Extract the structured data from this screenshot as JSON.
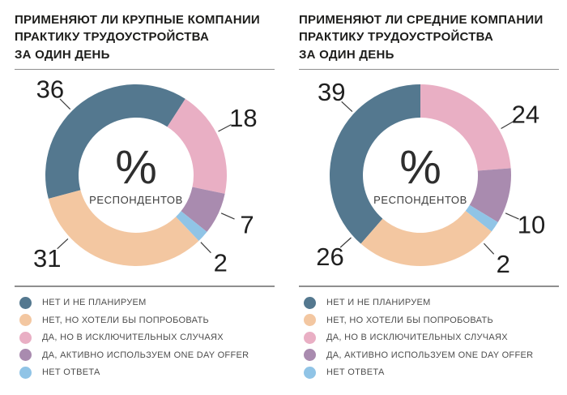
{
  "colors": {
    "slate": "#54788F",
    "peach": "#F3C7A1",
    "pink": "#E9AFC4",
    "purple": "#A98BAF",
    "blue": "#90C4E6",
    "leader": "#3a3a3a"
  },
  "chart_data": [
    {
      "type": "pie",
      "variant": "donut",
      "title": "ПРИМЕНЯЮТ ЛИ КРУПНЫЕ КОМПАНИИ ПРАКТИКУ ТРУДОУСТРОЙСТВА ЗА ОДИН ДЕНЬ",
      "title_lines": [
        "ПРИМЕНЯЮТ ЛИ КРУПНЫЕ КОМПАНИИ",
        "ПРАКТИКУ ТРУДОУСТРОЙСТВА",
        "ЗА ОДИН ДЕНЬ"
      ],
      "center_label": "%",
      "center_sublabel": "РЕСПОНДЕНТОВ",
      "unit": "% респондентов",
      "categories": [
        "НЕТ И НЕ ПЛАНИРУЕМ",
        "НЕТ, НО ХОТЕЛИ БЫ ПОПРОБОВАТЬ",
        "ДА, НО В ИСКЛЮЧИТЕЛЬНЫХ СЛУЧАЯХ",
        "ДА, АКТИВНО ИСПОЛЬЗУЕМ ONE DAY OFFER",
        "НЕТ ОТВЕТА"
      ],
      "values": [
        36,
        31,
        18,
        7,
        2
      ],
      "color_keys": [
        "slate",
        "peach",
        "pink",
        "purple",
        "blue"
      ],
      "legend_position": "bottom",
      "layout": {
        "start_angle_deg": 255,
        "draw_order": [
          0,
          2,
          3,
          4,
          1
        ],
        "label_angles_deg": [
          315,
          227,
          62,
          114,
          136
        ]
      }
    },
    {
      "type": "pie",
      "variant": "donut",
      "title": "ПРИМЕНЯЮТ ЛИ СРЕДНИЕ КОМПАНИИ ПРАКТИКУ ТРУДОУСТРОЙСТВА ЗА ОДИН ДЕНЬ",
      "title_lines": [
        "ПРИМЕНЯЮТ ЛИ СРЕДНИЕ КОМПАНИИ",
        "ПРАКТИКУ ТРУДОУСТРОЙСТВА",
        "ЗА ОДИН ДЕНЬ"
      ],
      "center_label": "%",
      "center_sublabel": "РЕСПОНДЕНТОВ",
      "unit": "% респондентов",
      "categories": [
        "НЕТ И НЕ ПЛАНИРУЕМ",
        "НЕТ, НО ХОТЕЛИ БЫ ПОПРОБОВАТЬ",
        "ДА, НО В ИСКЛЮЧИТЕЛЬНЫХ СЛУЧАЯХ",
        "ДА, АКТИВНО ИСПОЛЬЗУЕМ ONE DAY OFFER",
        "НЕТ ОТВЕТА"
      ],
      "values": [
        39,
        26,
        24,
        10,
        2
      ],
      "color_keys": [
        "slate",
        "peach",
        "pink",
        "purple",
        "blue"
      ],
      "legend_position": "bottom",
      "layout": {
        "start_angle_deg": 221,
        "draw_order": [
          0,
          2,
          3,
          4,
          1
        ],
        "label_angles_deg": [
          313,
          228,
          60,
          114,
          137
        ]
      }
    }
  ]
}
